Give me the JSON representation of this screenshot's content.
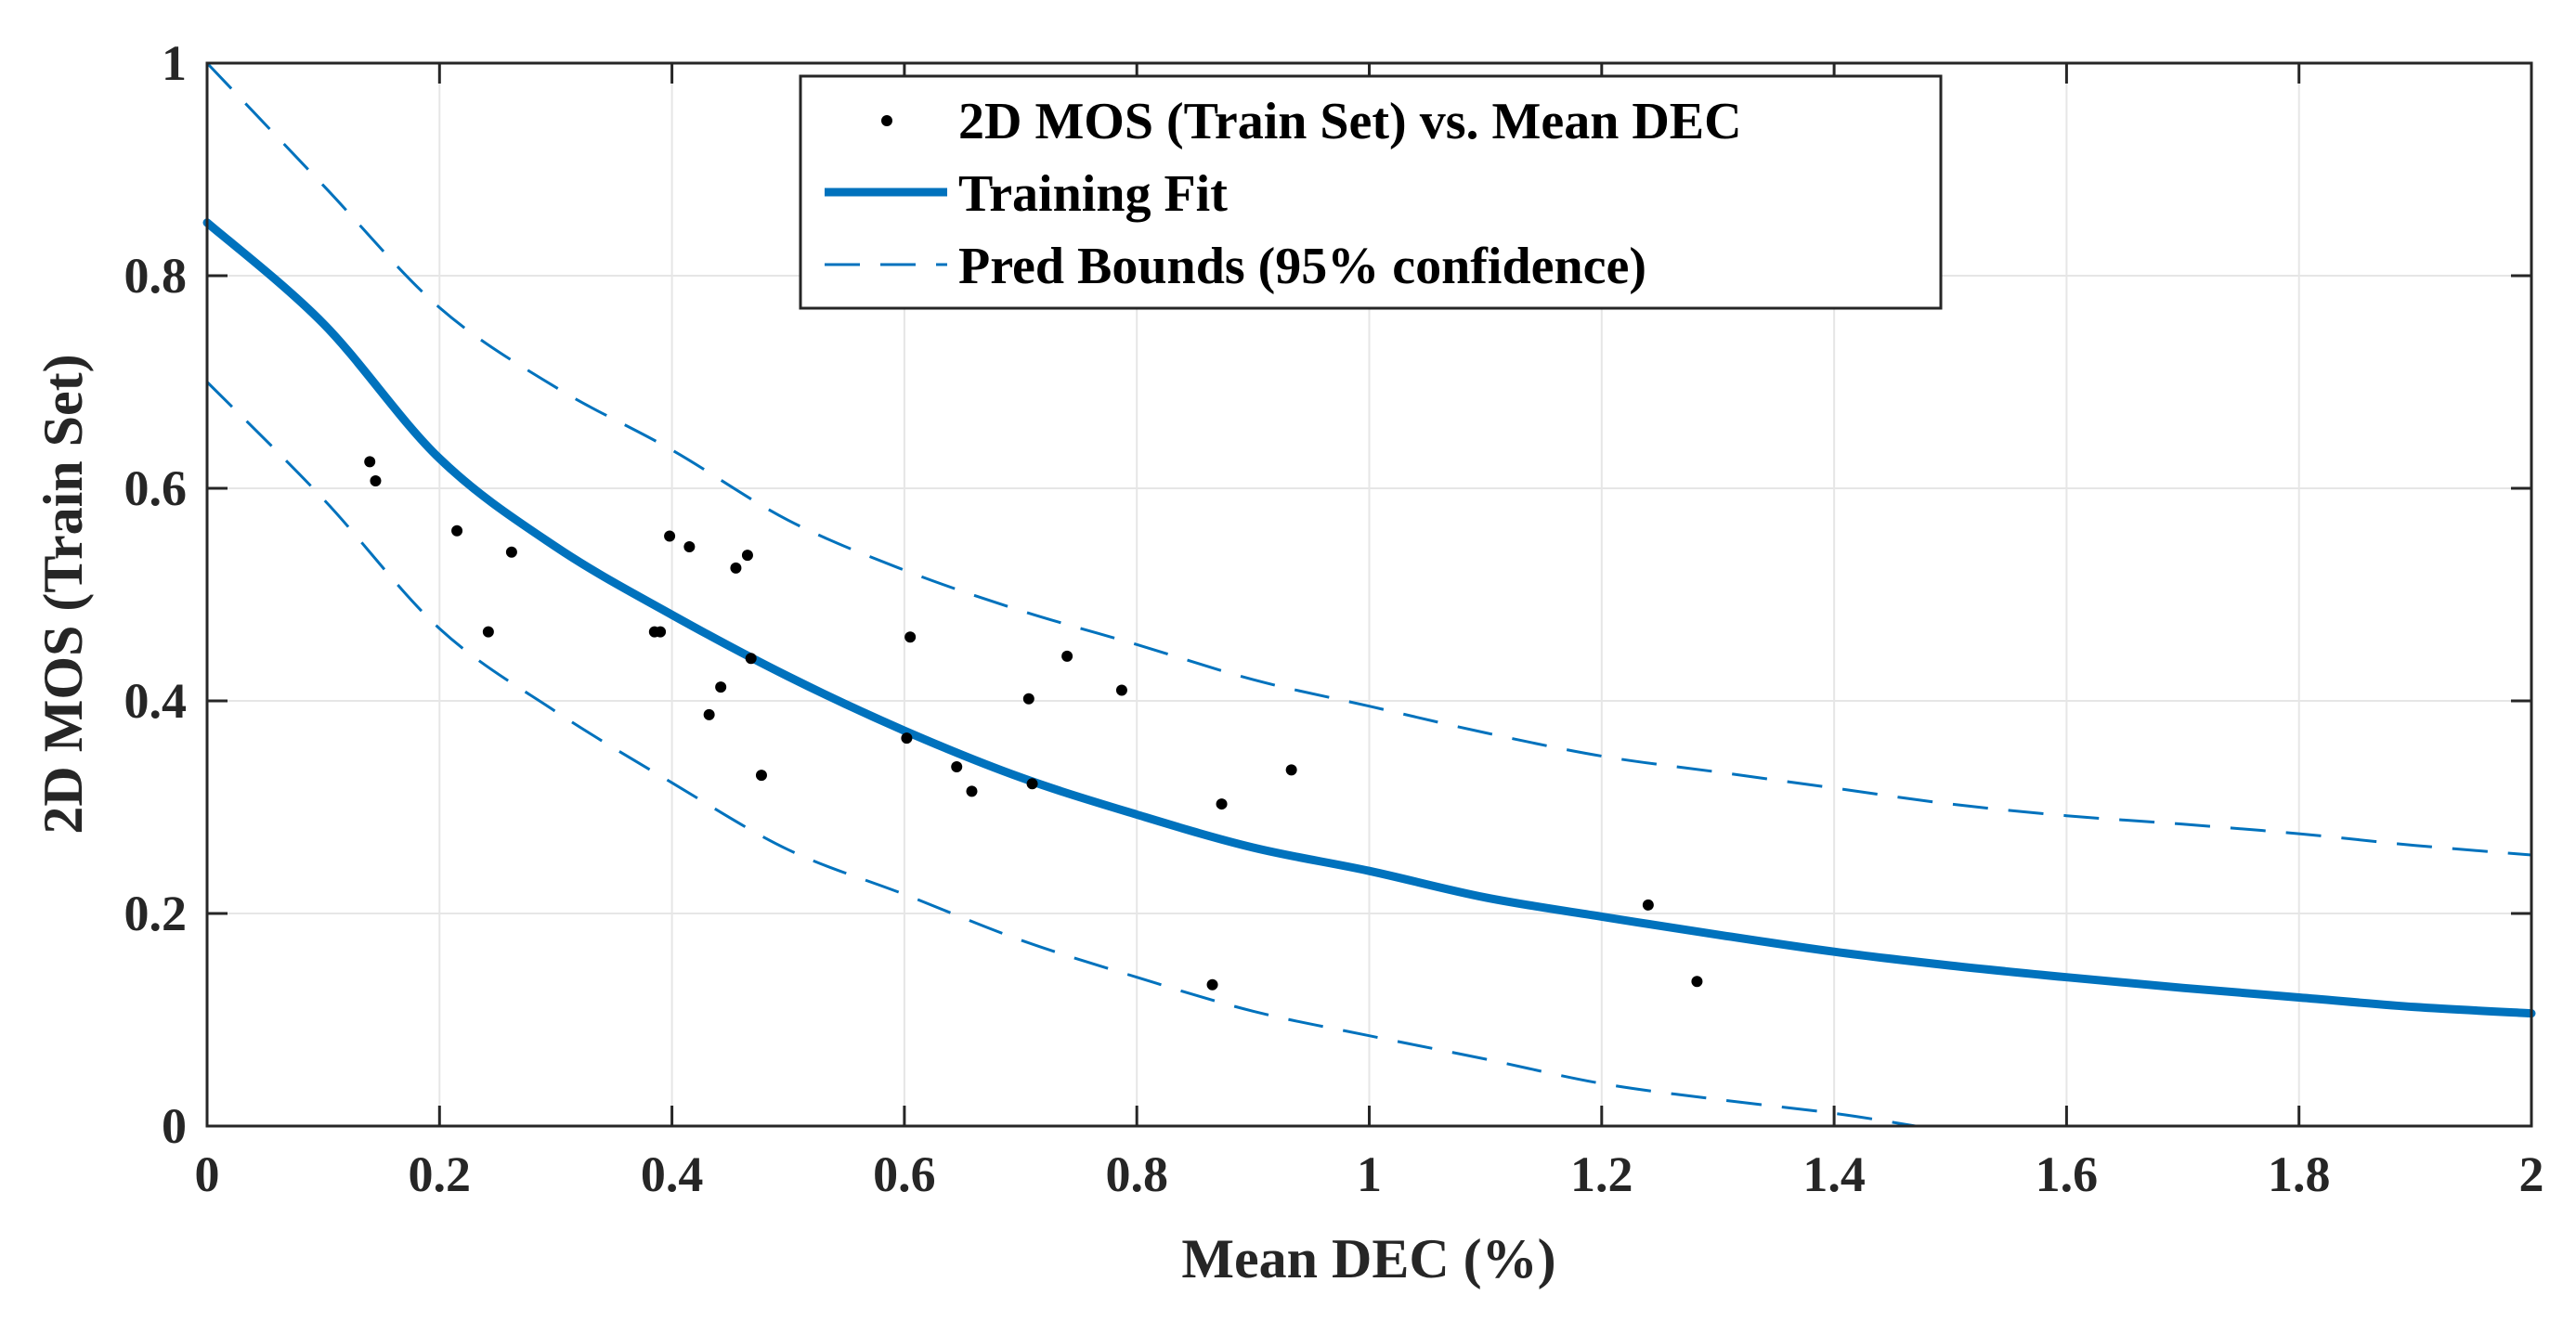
{
  "chart_data": {
    "type": "scatter",
    "title": "",
    "xlabel": "Mean DEC (%)",
    "ylabel": "2D MOS (Train Set)",
    "xlim": [
      0,
      2
    ],
    "ylim": [
      0,
      1
    ],
    "grid": true,
    "xticks": [
      0,
      0.2,
      0.4,
      0.6,
      0.8,
      1,
      1.2,
      1.4,
      1.6,
      1.8,
      2
    ],
    "yticks": [
      0,
      0.2,
      0.4,
      0.6,
      0.8,
      1
    ],
    "xtick_labels": [
      "0",
      "0.2",
      "0.4",
      "0.6",
      "0.8",
      "1",
      "1.2",
      "1.4",
      "1.6",
      "1.8",
      "2"
    ],
    "ytick_labels": [
      "0",
      "0.2",
      "0.4",
      "0.6",
      "0.8",
      "1"
    ],
    "legend_position": "top-center",
    "series": [
      {
        "name": "2D MOS (Train Set) vs. Mean DEC",
        "kind": "points",
        "color": "#000000",
        "x": [
          0.14,
          0.145,
          0.215,
          0.242,
          0.262,
          0.385,
          0.39,
          0.398,
          0.415,
          0.432,
          0.442,
          0.455,
          0.465,
          0.468,
          0.477,
          0.602,
          0.605,
          0.645,
          0.658,
          0.707,
          0.71,
          0.74,
          0.787,
          0.865,
          0.873,
          0.933,
          1.24,
          1.282
        ],
        "y": [
          0.625,
          0.607,
          0.56,
          0.465,
          0.54,
          0.465,
          0.465,
          0.555,
          0.545,
          0.387,
          0.413,
          0.525,
          0.537,
          0.44,
          0.33,
          0.365,
          0.46,
          0.338,
          0.315,
          0.402,
          0.322,
          0.442,
          0.41,
          0.133,
          0.303,
          0.335,
          0.208,
          0.136
        ]
      },
      {
        "name": "Training Fit",
        "kind": "line",
        "color": "#0072BD",
        "x": [
          0,
          0.1,
          0.2,
          0.3,
          0.4,
          0.5,
          0.6,
          0.7,
          0.8,
          0.9,
          1.0,
          1.1,
          1.2,
          1.3,
          1.4,
          1.5,
          1.6,
          1.7,
          1.8,
          1.9,
          2.0
        ],
        "y": [
          0.85,
          0.755,
          0.628,
          0.545,
          0.481,
          0.423,
          0.372,
          0.328,
          0.293,
          0.262,
          0.24,
          0.215,
          0.197,
          0.18,
          0.164,
          0.151,
          0.14,
          0.13,
          0.121,
          0.112,
          0.106
        ]
      },
      {
        "name": "Pred Bounds (95% confidence)",
        "kind": "dashed",
        "color": "#0072BD",
        "upper": {
          "x": [
            0,
            0.1,
            0.2,
            0.3,
            0.4,
            0.5,
            0.6,
            0.7,
            0.8,
            0.9,
            1.0,
            1.1,
            1.2,
            1.3,
            1.4,
            1.5,
            1.6,
            1.7,
            1.8,
            1.9,
            2.0
          ],
          "y": [
            1.0,
            0.885,
            0.77,
            0.695,
            0.636,
            0.57,
            0.523,
            0.485,
            0.453,
            0.42,
            0.395,
            0.37,
            0.348,
            0.333,
            0.318,
            0.303,
            0.292,
            0.284,
            0.275,
            0.264,
            0.255
          ]
        },
        "lower": {
          "x": [
            0,
            0.1,
            0.2,
            0.3,
            0.4,
            0.5,
            0.6,
            0.7,
            0.8,
            0.9,
            1.0,
            1.1,
            1.2,
            1.3,
            1.4,
            1.47
          ],
          "y": [
            0.7,
            0.59,
            0.468,
            0.39,
            0.323,
            0.26,
            0.218,
            0.175,
            0.14,
            0.108,
            0.085,
            0.063,
            0.04,
            0.025,
            0.012,
            0.0
          ]
        }
      }
    ]
  }
}
